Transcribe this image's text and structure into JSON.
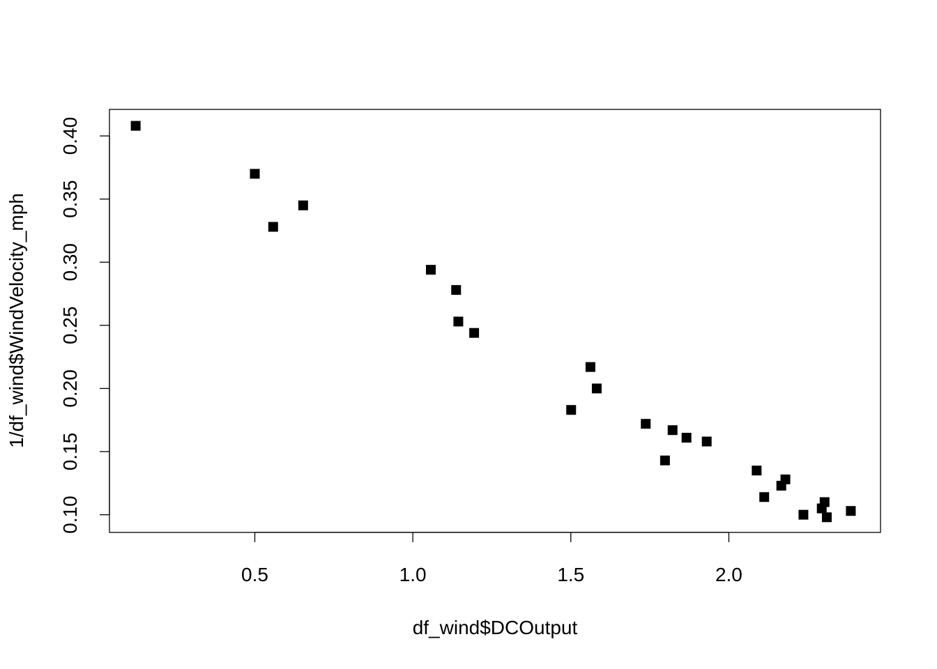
{
  "chart_data": {
    "type": "scatter",
    "title": "",
    "xlabel": "df_wind$DCOutput",
    "ylabel": "1/df_wind$WindVelocity_mph",
    "xlim": [
      0.04,
      2.48
    ],
    "ylim": [
      0.086,
      0.421
    ],
    "x_ticks": [
      0.5,
      1.0,
      1.5,
      2.0
    ],
    "x_tick_labels": [
      "0.5",
      "1.0",
      "1.5",
      "2.0"
    ],
    "y_ticks": [
      0.1,
      0.15,
      0.2,
      0.25,
      0.3,
      0.35,
      0.4
    ],
    "y_tick_labels": [
      "0.10",
      "0.15",
      "0.20",
      "0.25",
      "0.30",
      "0.35",
      "0.40"
    ],
    "grid": false,
    "marker": "filled-square",
    "marker_color": "#000000",
    "points": [
      {
        "x": 0.123,
        "y": 0.408
      },
      {
        "x": 0.5,
        "y": 0.37
      },
      {
        "x": 0.558,
        "y": 0.328
      },
      {
        "x": 0.653,
        "y": 0.345
      },
      {
        "x": 1.057,
        "y": 0.294
      },
      {
        "x": 1.137,
        "y": 0.278
      },
      {
        "x": 1.144,
        "y": 0.253
      },
      {
        "x": 1.194,
        "y": 0.244
      },
      {
        "x": 1.501,
        "y": 0.183
      },
      {
        "x": 1.562,
        "y": 0.217
      },
      {
        "x": 1.582,
        "y": 0.2
      },
      {
        "x": 1.737,
        "y": 0.172
      },
      {
        "x": 1.798,
        "y": 0.143
      },
      {
        "x": 1.822,
        "y": 0.167
      },
      {
        "x": 1.866,
        "y": 0.161
      },
      {
        "x": 1.93,
        "y": 0.158
      },
      {
        "x": 2.088,
        "y": 0.135
      },
      {
        "x": 2.112,
        "y": 0.114
      },
      {
        "x": 2.166,
        "y": 0.123
      },
      {
        "x": 2.179,
        "y": 0.128
      },
      {
        "x": 2.236,
        "y": 0.1
      },
      {
        "x": 2.294,
        "y": 0.105
      },
      {
        "x": 2.303,
        "y": 0.11
      },
      {
        "x": 2.31,
        "y": 0.098
      },
      {
        "x": 2.386,
        "y": 0.103
      }
    ]
  }
}
